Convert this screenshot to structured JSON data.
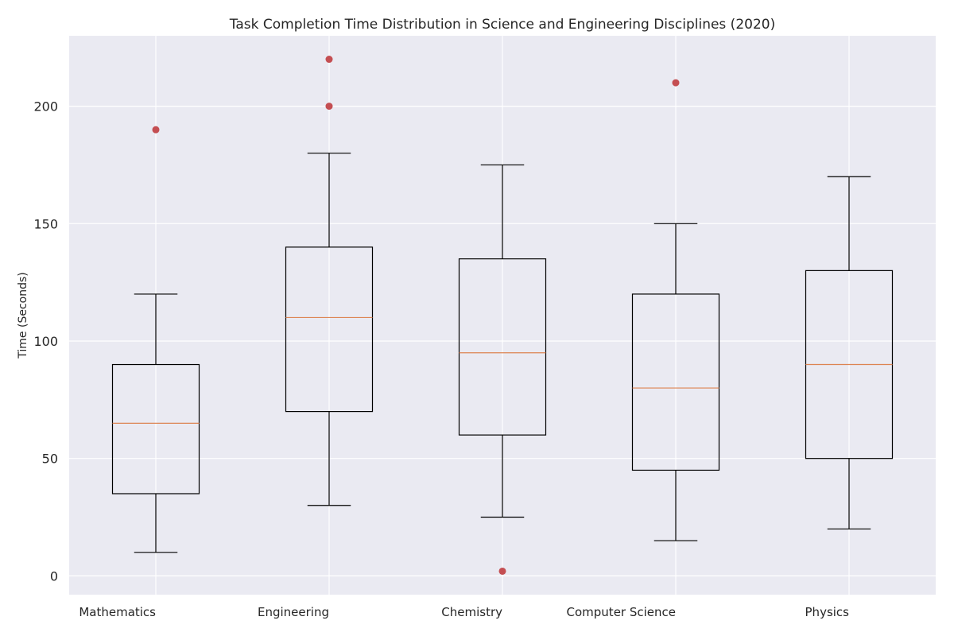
{
  "chart_data": {
    "type": "box",
    "title": "Task Completion Time Distribution in Science and Engineering Disciplines (2020)",
    "xlabel": "",
    "ylabel": "Time (Seconds)",
    "ylim": [
      -8,
      230
    ],
    "yticks": [
      0,
      50,
      100,
      150,
      200
    ],
    "grid": true,
    "categories": [
      "Mathematics",
      "Engineering",
      "Chemistry",
      "Computer Science",
      "Physics"
    ],
    "boxes": [
      {
        "whisker_low": 10,
        "q1": 35,
        "median": 65,
        "q3": 90,
        "whisker_high": 120,
        "outliers": [
          190
        ]
      },
      {
        "whisker_low": 30,
        "q1": 70,
        "median": 110,
        "q3": 140,
        "whisker_high": 180,
        "outliers": [
          200,
          220
        ]
      },
      {
        "whisker_low": 25,
        "q1": 60,
        "median": 95,
        "q3": 135,
        "whisker_high": 175,
        "outliers": [
          2
        ]
      },
      {
        "whisker_low": 15,
        "q1": 45,
        "median": 80,
        "q3": 120,
        "whisker_high": 150,
        "outliers": [
          210
        ]
      },
      {
        "whisker_low": 20,
        "q1": 50,
        "median": 90,
        "q3": 130,
        "whisker_high": 170,
        "outliers": []
      }
    ],
    "colors": {
      "plot_background": "#eaeaf2",
      "grid": "#ffffff",
      "box": "#000000",
      "median": "#dd8452",
      "outlier": "#c44e52"
    }
  }
}
